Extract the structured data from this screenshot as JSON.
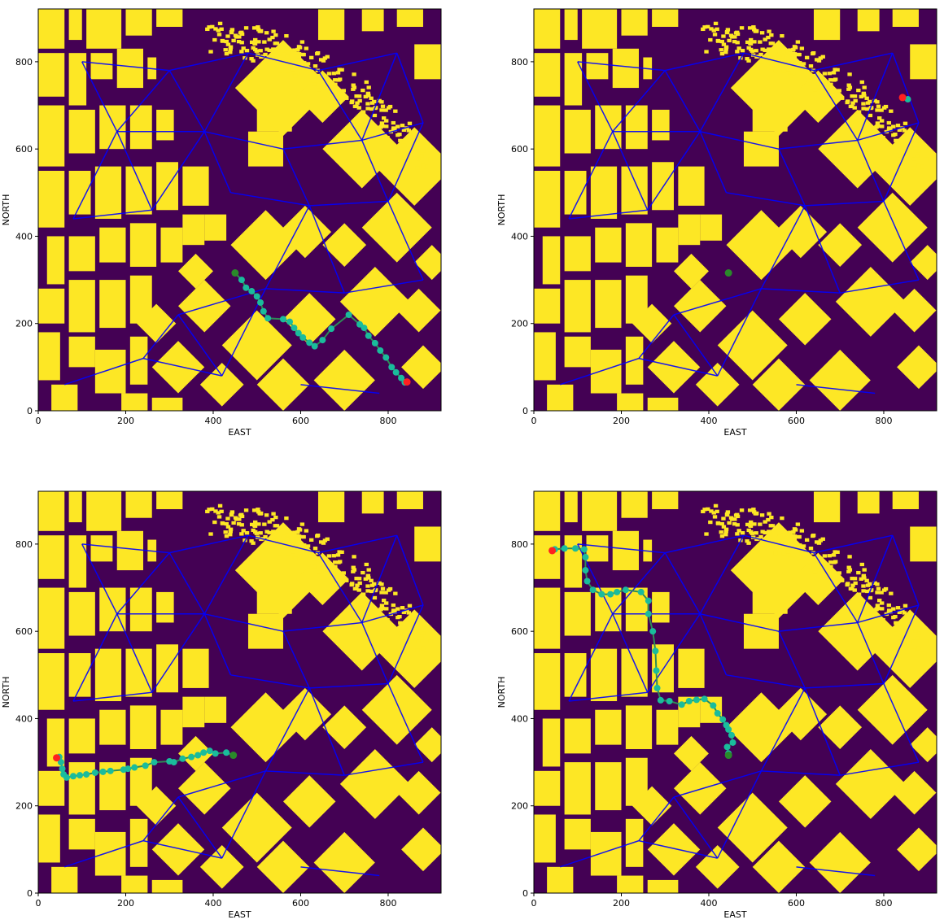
{
  "figure": {
    "background": "#ffffff",
    "colors": {
      "obstacle": "#fde725",
      "free": "#440154",
      "graph_edge": "#0000ff",
      "path": "#1abc9c",
      "path_line": "#2e8b57",
      "start_marker": "#2a8a2a",
      "goal_marker": "#ff2020"
    }
  },
  "chart_data": [
    {
      "type": "scatter",
      "xlabel": "EAST",
      "ylabel": "NORTH",
      "xlim": [
        0,
        921
      ],
      "ylim": [
        0,
        921
      ],
      "xticks": [
        0,
        200,
        400,
        600,
        800
      ],
      "yticks": [
        0,
        200,
        400,
        600,
        800
      ],
      "grid": false,
      "start": [
        450,
        316
      ],
      "goal": [
        843,
        66
      ],
      "path": [
        [
          450,
          316
        ],
        [
          465,
          300
        ],
        [
          475,
          282
        ],
        [
          488,
          274
        ],
        [
          500,
          262
        ],
        [
          508,
          248
        ],
        [
          515,
          228
        ],
        [
          525,
          212
        ],
        [
          560,
          210
        ],
        [
          575,
          204
        ],
        [
          585,
          190
        ],
        [
          595,
          178
        ],
        [
          605,
          168
        ],
        [
          620,
          156
        ],
        [
          632,
          148
        ],
        [
          650,
          162
        ],
        [
          670,
          188
        ],
        [
          710,
          220
        ],
        [
          735,
          198
        ],
        [
          745,
          190
        ],
        [
          755,
          172
        ],
        [
          770,
          155
        ],
        [
          782,
          138
        ],
        [
          795,
          122
        ],
        [
          808,
          100
        ],
        [
          818,
          88
        ],
        [
          830,
          75
        ],
        [
          838,
          65
        ]
      ]
    },
    {
      "type": "scatter",
      "xlabel": "EAST",
      "ylabel": "NORTH",
      "xlim": [
        0,
        921
      ],
      "ylim": [
        0,
        921
      ],
      "xticks": [
        0,
        200,
        400,
        600,
        800
      ],
      "yticks": [
        0,
        200,
        400,
        600,
        800
      ],
      "grid": false,
      "start": [
        445,
        316
      ],
      "goal": [
        843,
        718
      ],
      "path": [
        [
          843,
          718
        ],
        [
          855,
          714
        ]
      ]
    },
    {
      "type": "scatter",
      "xlabel": "EAST",
      "ylabel": "NORTH",
      "xlim": [
        0,
        921
      ],
      "ylim": [
        0,
        921
      ],
      "xticks": [
        0,
        200,
        400,
        600,
        800
      ],
      "yticks": [
        0,
        200,
        400,
        600,
        800
      ],
      "grid": false,
      "start": [
        446,
        316
      ],
      "goal": [
        42,
        310
      ],
      "path": [
        [
          446,
          316
        ],
        [
          430,
          322
        ],
        [
          405,
          320
        ],
        [
          392,
          326
        ],
        [
          378,
          322
        ],
        [
          365,
          316
        ],
        [
          350,
          312
        ],
        [
          330,
          308
        ],
        [
          310,
          300
        ],
        [
          300,
          302
        ],
        [
          265,
          300
        ],
        [
          245,
          292
        ],
        [
          220,
          288
        ],
        [
          205,
          285
        ],
        [
          195,
          283
        ],
        [
          165,
          280
        ],
        [
          148,
          278
        ],
        [
          130,
          276
        ],
        [
          110,
          272
        ],
        [
          95,
          270
        ],
        [
          80,
          268
        ],
        [
          65,
          265
        ],
        [
          58,
          272
        ],
        [
          55,
          285
        ],
        [
          52,
          300
        ],
        [
          48,
          312
        ]
      ]
    },
    {
      "type": "scatter",
      "xlabel": "EAST",
      "ylabel": "NORTH",
      "xlim": [
        0,
        921
      ],
      "ylim": [
        0,
        921
      ],
      "xticks": [
        0,
        200,
        400,
        600,
        800
      ],
      "yticks": [
        0,
        200,
        400,
        600,
        800
      ],
      "grid": false,
      "start": [
        445,
        316
      ],
      "goal": [
        42,
        785
      ],
      "path": [
        [
          445,
          320
        ],
        [
          442,
          335
        ],
        [
          455,
          345
        ],
        [
          452,
          362
        ],
        [
          445,
          375
        ],
        [
          440,
          385
        ],
        [
          432,
          398
        ],
        [
          420,
          412
        ],
        [
          410,
          430
        ],
        [
          390,
          445
        ],
        [
          372,
          443
        ],
        [
          355,
          440
        ],
        [
          338,
          432
        ],
        [
          310,
          440
        ],
        [
          290,
          442
        ],
        [
          282,
          470
        ],
        [
          280,
          510
        ],
        [
          278,
          555
        ],
        [
          272,
          600
        ],
        [
          262,
          640
        ],
        [
          262,
          670
        ],
        [
          245,
          690
        ],
        [
          210,
          695
        ],
        [
          190,
          690
        ],
        [
          175,
          685
        ],
        [
          155,
          685
        ],
        [
          135,
          695
        ],
        [
          122,
          715
        ],
        [
          118,
          740
        ],
        [
          118,
          770
        ],
        [
          115,
          788
        ],
        [
          95,
          790
        ],
        [
          70,
          790
        ],
        [
          48,
          788
        ]
      ]
    }
  ]
}
